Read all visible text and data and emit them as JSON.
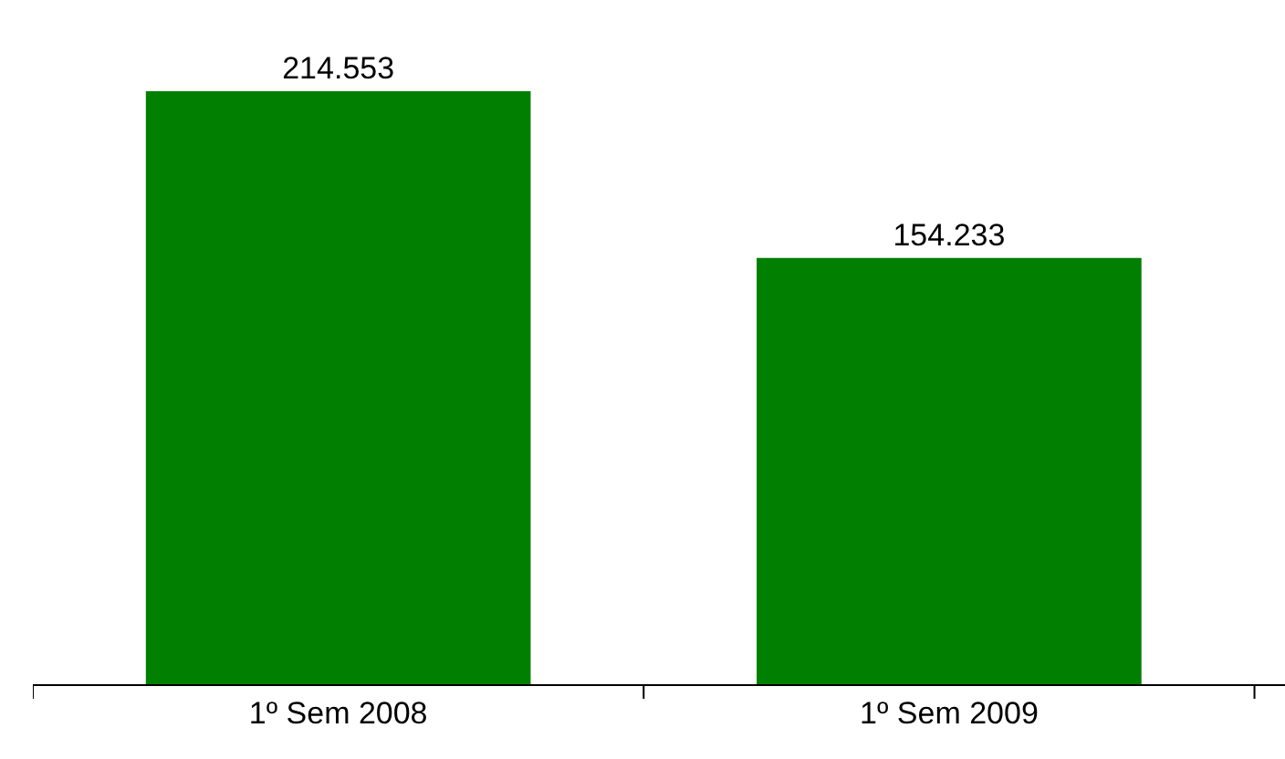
{
  "chart_data": {
    "type": "bar",
    "categories": [
      "1º Sem 2008",
      "1º Sem 2009"
    ],
    "values": [
      214.553,
      154.233
    ],
    "color": "#007f00",
    "data_labels": true,
    "legend": false
  }
}
